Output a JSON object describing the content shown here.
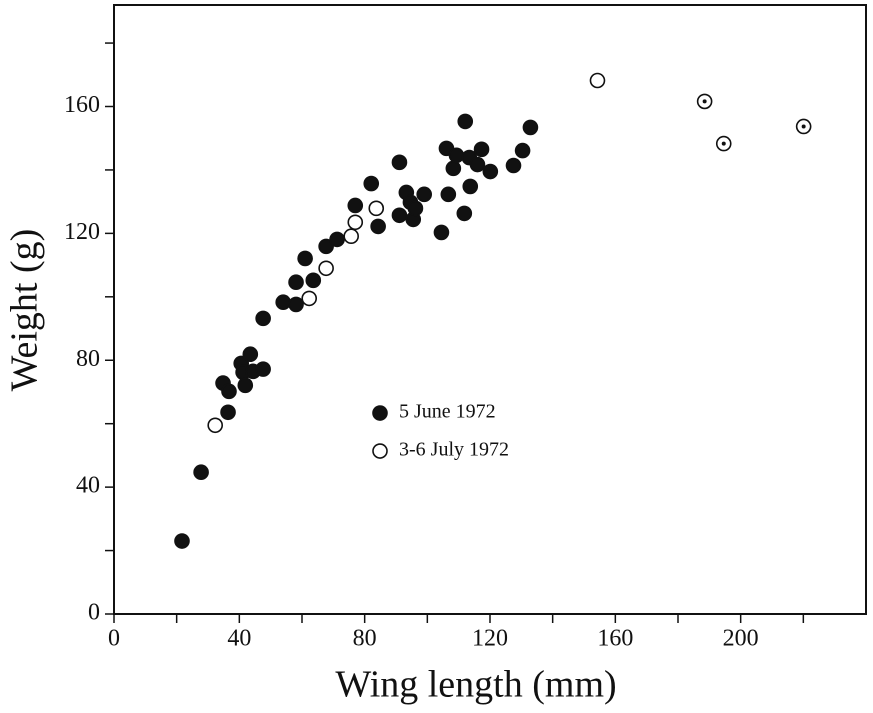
{
  "chart_data": {
    "type": "scatter",
    "x_label": "Wing length (mm)",
    "y_label": "Weight (g)",
    "xlim": [
      0,
      240
    ],
    "ylim": [
      0,
      192
    ],
    "xticks": [
      0,
      40,
      80,
      120,
      160,
      200
    ],
    "yticks": [
      0,
      40,
      80,
      120,
      160
    ],
    "xminor_ticks": [
      20,
      60,
      100,
      140,
      180,
      220
    ],
    "yminor_ticks": [
      20,
      60,
      100,
      140,
      180
    ],
    "grid": false,
    "legend_position": "center",
    "series": [
      {
        "name": "5 June 1972",
        "color": "#111111",
        "marker": "filled",
        "x": [
          21.7,
          27.8,
          34.8,
          36.7,
          36.4,
          40.6,
          41.2,
          41.9,
          43.5,
          44.4,
          47.6,
          47.6,
          54,
          58.1,
          58.1,
          61,
          63.6,
          67.7,
          71.2,
          77,
          82.1,
          84.3,
          91.1,
          91.1,
          93.3,
          94.6,
          95.5,
          96.2,
          99,
          104.5,
          106.1,
          106.7,
          108.3,
          109.3,
          112.1,
          111.8,
          113.4,
          113.7,
          116,
          117.3,
          120.1,
          127.5,
          130.4,
          132.9
        ],
        "values": [
          23,
          44.7,
          72.8,
          70.2,
          63.6,
          79,
          76.2,
          72.1,
          81.9,
          76.5,
          77.2,
          93.2,
          98.3,
          104.6,
          97.6,
          112.1,
          105.2,
          115.9,
          118.1,
          128.8,
          135.7,
          122.2,
          142.4,
          125.7,
          132.9,
          129.8,
          124.4,
          127.9,
          132.3,
          120.3,
          146.8,
          132.3,
          140.5,
          144.6,
          155.3,
          126.3,
          143.9,
          134.8,
          141.7,
          146.5,
          139.5,
          141.4,
          146.1,
          153.4
        ]
      },
      {
        "name": "3-6 July 1972",
        "color": "#111111",
        "marker": "open",
        "x": [
          32.3,
          62.3,
          67.7,
          75.7,
          77,
          83.7,
          154.3
        ],
        "values": [
          59.5,
          99.5,
          109,
          119.1,
          123.5,
          127.9,
          168.2
        ]
      },
      {
        "color": "#111111",
        "marker": "dotted",
        "x": [
          188.5,
          194.6,
          220.1
        ],
        "values": [
          161.6,
          148.3,
          153.7
        ]
      }
    ]
  }
}
